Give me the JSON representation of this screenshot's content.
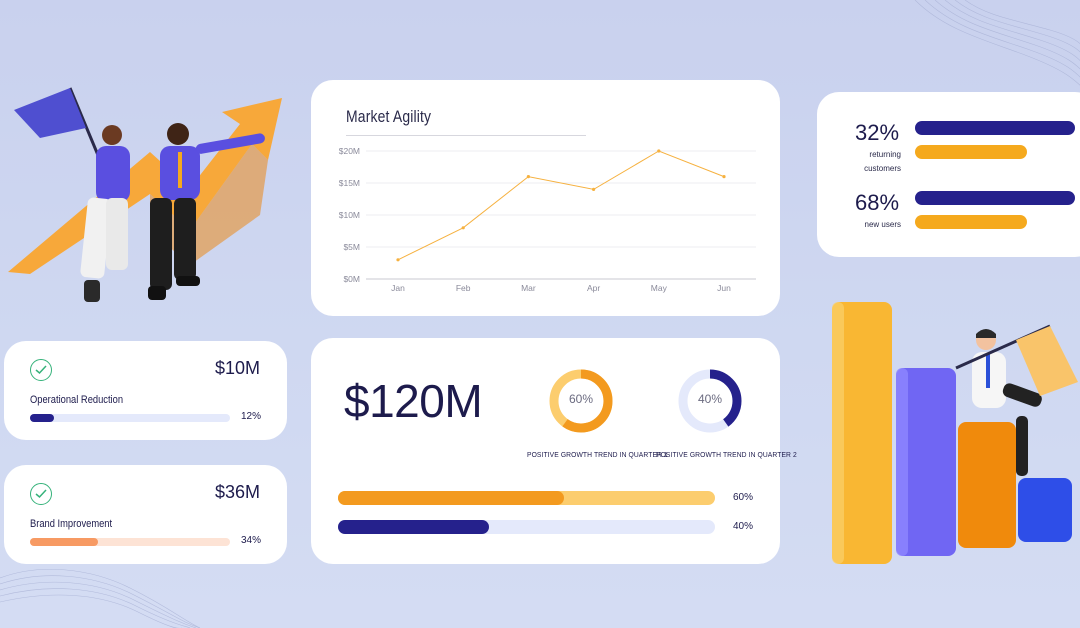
{
  "colors": {
    "navy": "#25218c",
    "orange": "#f5a91d",
    "orange_deep": "#f39a1f",
    "orange_light": "#fccd6e",
    "lavender": "#e4e9fb",
    "salmon": "#f79a63",
    "salmon_light": "#fde3d5",
    "green_check": "#35b27a",
    "line_chart": "#f6b13f"
  },
  "market_chart": {
    "title": "Market Agility"
  },
  "chart_data": {
    "type": "line",
    "title": "Market Agility",
    "categories": [
      "Jan",
      "Feb",
      "Mar",
      "Apr",
      "May",
      "Jun"
    ],
    "values": [
      3,
      8,
      16,
      14,
      20,
      16
    ],
    "y_ticks": [
      "$0M",
      "$5M",
      "$10M",
      "$15M",
      "$20M"
    ],
    "ylim": [
      0,
      20
    ],
    "grid": true
  },
  "users": {
    "returning": {
      "pct": "32%",
      "label_line1": "returning",
      "label_line2": "customers"
    },
    "new_users": {
      "pct": "68%",
      "label": "new users"
    }
  },
  "operational": {
    "amount": "$10M",
    "label": "Operational Reduction",
    "pct": "12%",
    "progress": 0.12,
    "icon": "check-circle-icon"
  },
  "brand": {
    "amount": "$36M",
    "label": "Brand Improvement",
    "pct": "34%",
    "progress": 0.34,
    "icon": "check-circle-icon"
  },
  "growth": {
    "amount": "$120M",
    "q1": {
      "value": "60%",
      "fraction": 0.6,
      "caption": "POSITIVE GROWTH TREND IN QUARTER 1"
    },
    "q2": {
      "value": "40%",
      "fraction": 0.4,
      "caption": "POSITIVE GROWTH TREND IN QUARTER 2"
    },
    "bar1": {
      "value": "60%",
      "fraction": 0.6
    },
    "bar2": {
      "value": "40%",
      "fraction": 0.4
    }
  }
}
